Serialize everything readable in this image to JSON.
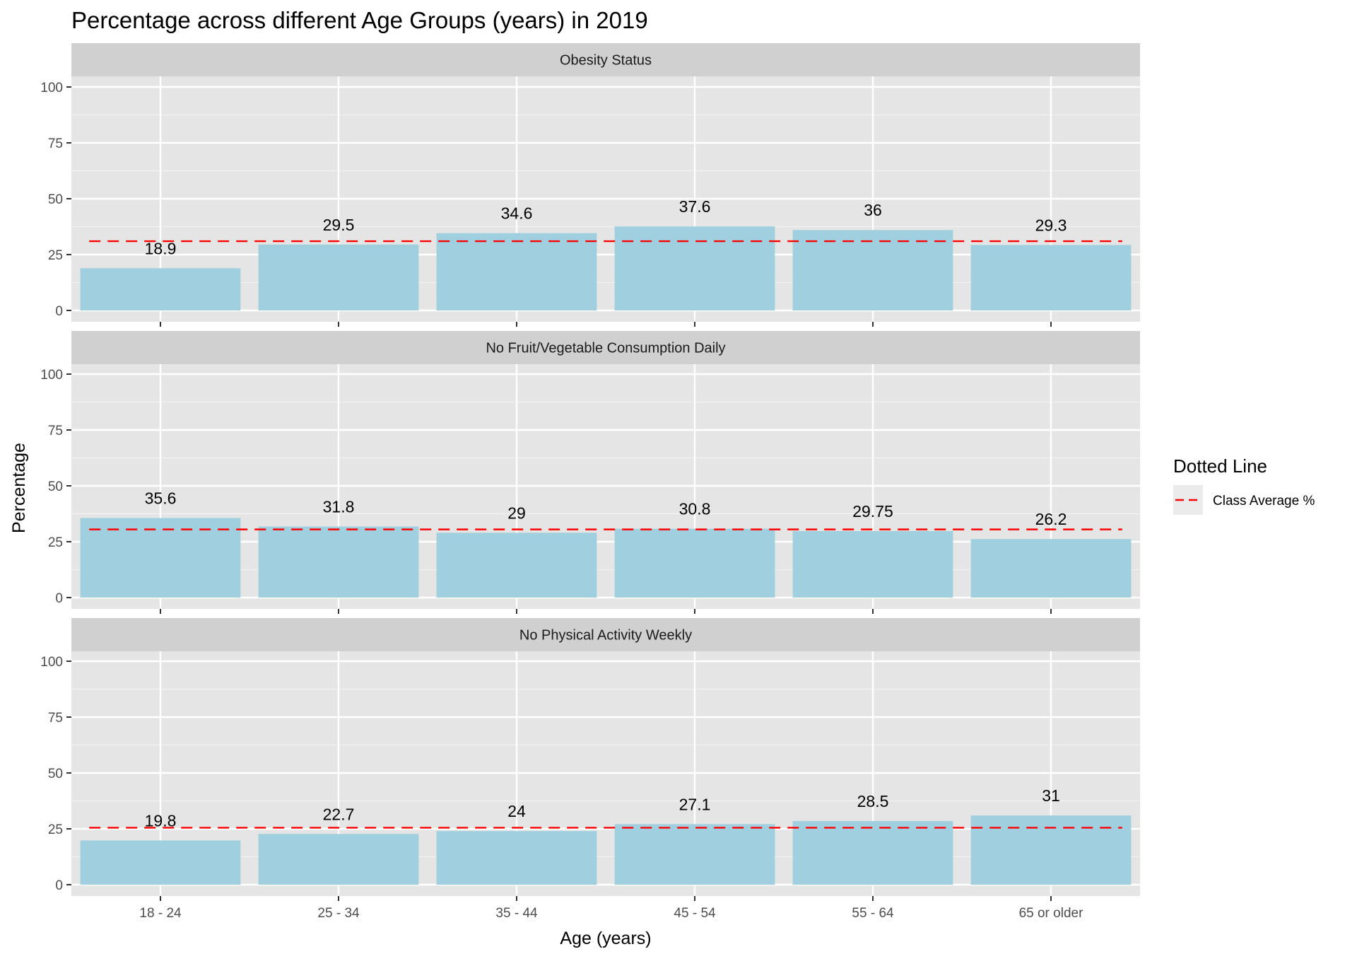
{
  "chart_data": {
    "type": "bar",
    "title": "Percentage across different Age Groups (years) in 2019",
    "xlabel": "Age (years)",
    "ylabel": "Percentage",
    "categories": [
      "18 - 24",
      "25 - 34",
      "35 - 44",
      "45 - 54",
      "55 - 64",
      "65 or older"
    ],
    "ylim": [
      0,
      105
    ],
    "yticks": [
      0,
      25,
      50,
      75,
      100
    ],
    "grid": true,
    "bar_color": "#a0cfe0",
    "panel_bg": "#e5e5e5",
    "strip_bg": "#d0d0d0",
    "avg_line_color": "#ff0000",
    "legend": {
      "title": "Dotted Line",
      "position": "right",
      "items": [
        {
          "label": "Class Average %",
          "style": "dashed",
          "color": "#ff0000"
        }
      ]
    },
    "panels": [
      {
        "label": "Obesity Status",
        "values": [
          18.9,
          29.5,
          34.6,
          37.6,
          36,
          29.3
        ],
        "value_labels": [
          "18.9",
          "29.5",
          "34.6",
          "37.6",
          "36",
          "29.3"
        ],
        "average": 31.0
      },
      {
        "label": "No Fruit/Vegetable Consumption Daily",
        "values": [
          35.6,
          31.8,
          29,
          30.8,
          29.75,
          26.2
        ],
        "value_labels": [
          "35.6",
          "31.8",
          "29",
          "30.8",
          "29.75",
          "26.2"
        ],
        "average": 30.5
      },
      {
        "label": "No Physical Activity Weekly",
        "values": [
          19.8,
          22.7,
          24,
          27.1,
          28.5,
          31
        ],
        "value_labels": [
          "19.8",
          "22.7",
          "24",
          "27.1",
          "28.5",
          "31"
        ],
        "average": 25.5
      }
    ]
  }
}
